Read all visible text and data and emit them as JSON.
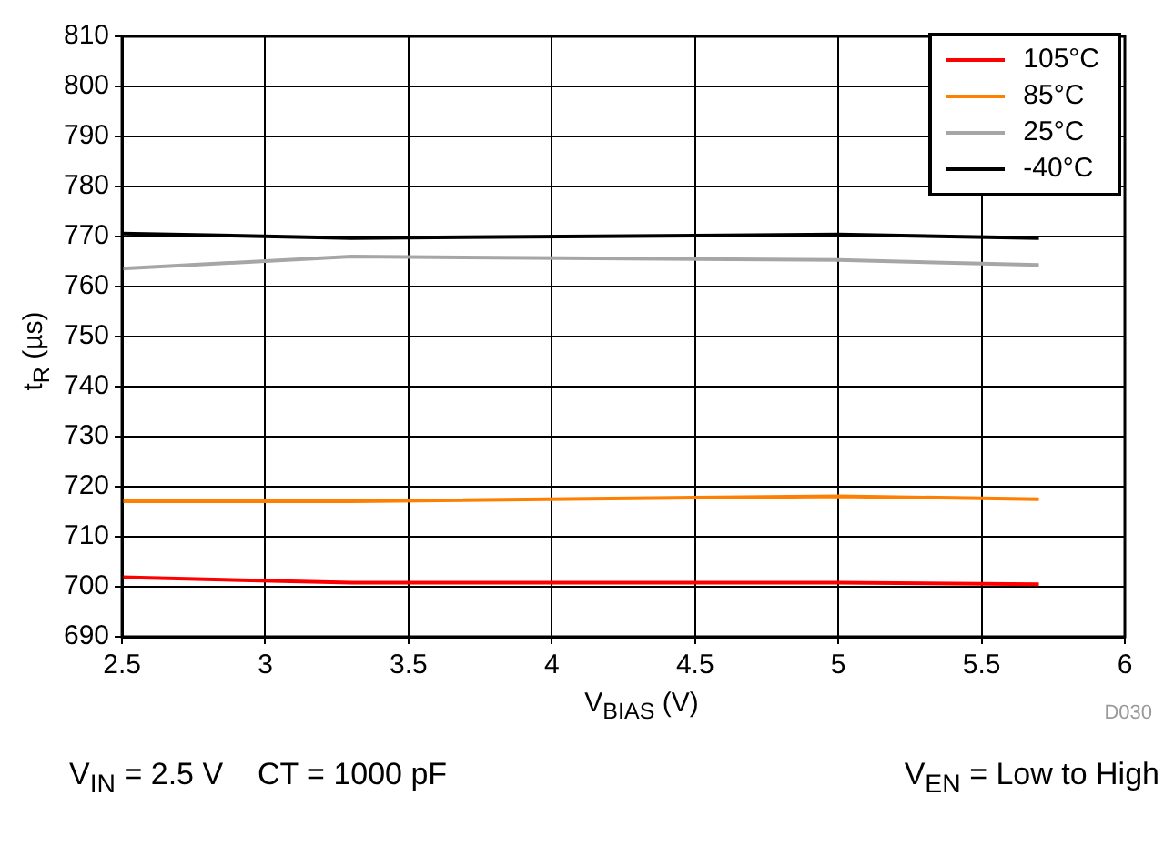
{
  "chart_data": {
    "type": "line",
    "xlabel": "V$_{BIAS}$ (V)",
    "ylabel": "t$_{R}$ (µs)",
    "x": [
      2.5,
      3.3,
      5,
      5.7
    ],
    "series": [
      {
        "name": "105°C",
        "color": "#ff0000",
        "values": [
          701.9,
          700.8,
          700.8,
          700.5
        ]
      },
      {
        "name": "85°C",
        "color": "#ff7f00",
        "values": [
          717.1,
          717.1,
          718.1,
          717.5
        ]
      },
      {
        "name": "25°C",
        "color": "#a6a6a6",
        "values": [
          763.6,
          766,
          765.3,
          764.3
        ]
      },
      {
        "name": "-40°C",
        "color": "#000000",
        "values": [
          770.6,
          769.7,
          770.4,
          769.7
        ]
      }
    ],
    "xlim": [
      2.5,
      6
    ],
    "xticks": [
      2.5,
      3,
      3.5,
      4,
      4.5,
      5,
      5.5,
      6
    ],
    "ylim": [
      690,
      810
    ],
    "yticks": [
      690,
      700,
      710,
      720,
      730,
      740,
      750,
      760,
      770,
      780,
      790,
      800,
      810
    ],
    "grid": true,
    "legend": "top right",
    "marker": "none",
    "line_style": "solid",
    "annotations": [
      "D030",
      "V$_{IN}$ = 2.5 V    CT = 1000 pF",
      "V$_{EN}$ = Low to High"
    ]
  }
}
